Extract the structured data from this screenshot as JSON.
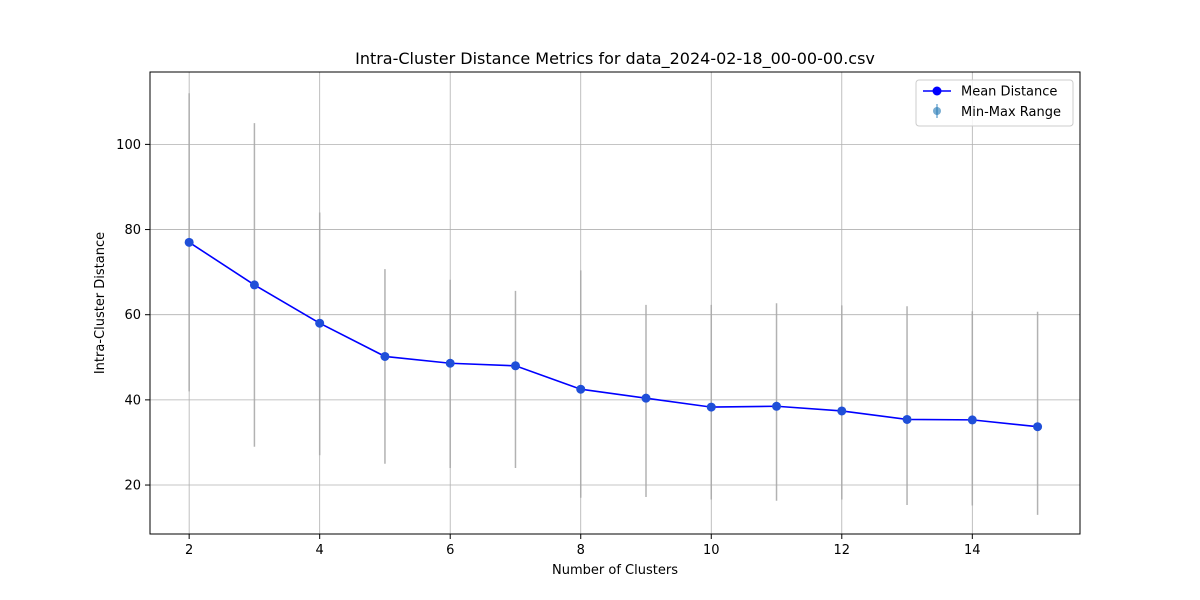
{
  "chart_data": {
    "type": "line",
    "title": "Intra-Cluster Distance Metrics for data_2024-02-18_00-00-00.csv",
    "xlabel": "Number of Clusters",
    "ylabel": "Intra-Cluster Distance",
    "xlim": [
      1.4,
      15.65
    ],
    "ylim": [
      8.5,
      117
    ],
    "xticks": [
      2,
      4,
      6,
      8,
      10,
      12,
      14
    ],
    "yticks": [
      20,
      40,
      60,
      80,
      100
    ],
    "grid": true,
    "legend_position": "top-right",
    "series": [
      {
        "name": "Mean Distance",
        "color": "#0000ff",
        "marker_color": "#1f4fd8",
        "x": [
          2,
          3,
          4,
          5,
          6,
          7,
          8,
          9,
          10,
          11,
          12,
          13,
          14,
          15
        ],
        "y": [
          77,
          67,
          58,
          50.2,
          48.6,
          48,
          42.5,
          40.4,
          38.3,
          38.5,
          37.4,
          35.4,
          35.3,
          33.7
        ]
      }
    ],
    "range_series": {
      "name": "Min-Max Range",
      "color": "#aaaaaa",
      "legend_color": "#1f77b4",
      "x": [
        2,
        3,
        4,
        5,
        6,
        7,
        8,
        9,
        10,
        11,
        12,
        13,
        14,
        15
      ],
      "min": [
        42,
        29,
        27,
        25,
        24,
        24,
        17,
        17.2,
        16.6,
        16.3,
        16.6,
        15.3,
        15.2,
        13
      ],
      "max": [
        112,
        105,
        84,
        70.7,
        68.2,
        65.6,
        70.4,
        62.3,
        62.3,
        62.7,
        62.2,
        62,
        60.8,
        60.7
      ]
    }
  }
}
